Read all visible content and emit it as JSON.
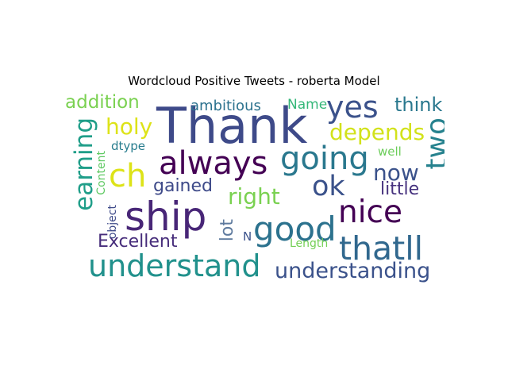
{
  "title": "Wordcloud Positive Tweets - roberta Model",
  "words": [
    {
      "id": "thank",
      "text": "Thank",
      "color": "#3e4a89"
    },
    {
      "id": "ship",
      "text": "ship",
      "color": "#482677"
    },
    {
      "id": "always",
      "text": "always",
      "color": "#440154"
    },
    {
      "id": "going",
      "text": "going",
      "color": "#2a788e"
    },
    {
      "id": "understand",
      "text": "understand",
      "color": "#21918c"
    },
    {
      "id": "understanding",
      "text": "understanding",
      "color": "#3b528b"
    },
    {
      "id": "thatll",
      "text": "thatll",
      "color": "#31688e"
    },
    {
      "id": "nice",
      "text": "nice",
      "color": "#440154"
    },
    {
      "id": "good",
      "text": "good",
      "color": "#2c728e"
    },
    {
      "id": "yes",
      "text": "yes",
      "color": "#3b528b"
    },
    {
      "id": "two",
      "text": "two",
      "color": "#26828e"
    },
    {
      "id": "ok",
      "text": "ok",
      "color": "#3b528b"
    },
    {
      "id": "earning",
      "text": "earning",
      "color": "#1f9e89"
    },
    {
      "id": "ch",
      "text": "ch",
      "color": "#dde318"
    },
    {
      "id": "depends",
      "text": "depends",
      "color": "#d2e21b"
    },
    {
      "id": "holy",
      "text": "holy",
      "color": "#dde318"
    },
    {
      "id": "right",
      "text": "right",
      "color": "#7ad151"
    },
    {
      "id": "now",
      "text": "now",
      "color": "#3b528b"
    },
    {
      "id": "addition",
      "text": "addition",
      "color": "#7ad151"
    },
    {
      "id": "think",
      "text": "think",
      "color": "#2a788e"
    },
    {
      "id": "excellent",
      "text": "Excellent",
      "color": "#472d7b"
    },
    {
      "id": "gained",
      "text": "gained",
      "color": "#3e4a89"
    },
    {
      "id": "little",
      "text": "little",
      "color": "#46327e"
    },
    {
      "id": "lot",
      "text": "lot",
      "color": "#5e7a9e"
    },
    {
      "id": "ambitious",
      "text": "ambitious",
      "color": "#2c728e"
    },
    {
      "id": "name",
      "text": "Name",
      "color": "#35b779"
    },
    {
      "id": "dtype",
      "text": "dtype",
      "color": "#287d8e"
    },
    {
      "id": "well",
      "text": "well",
      "color": "#6ccd5a"
    },
    {
      "id": "content",
      "text": "Content",
      "color": "#5ec962"
    },
    {
      "id": "object",
      "text": "object",
      "color": "#3e4a89"
    },
    {
      "id": "length",
      "text": "Length",
      "color": "#73d055"
    },
    {
      "id": "n",
      "text": "N",
      "color": "#3b528b"
    }
  ]
}
